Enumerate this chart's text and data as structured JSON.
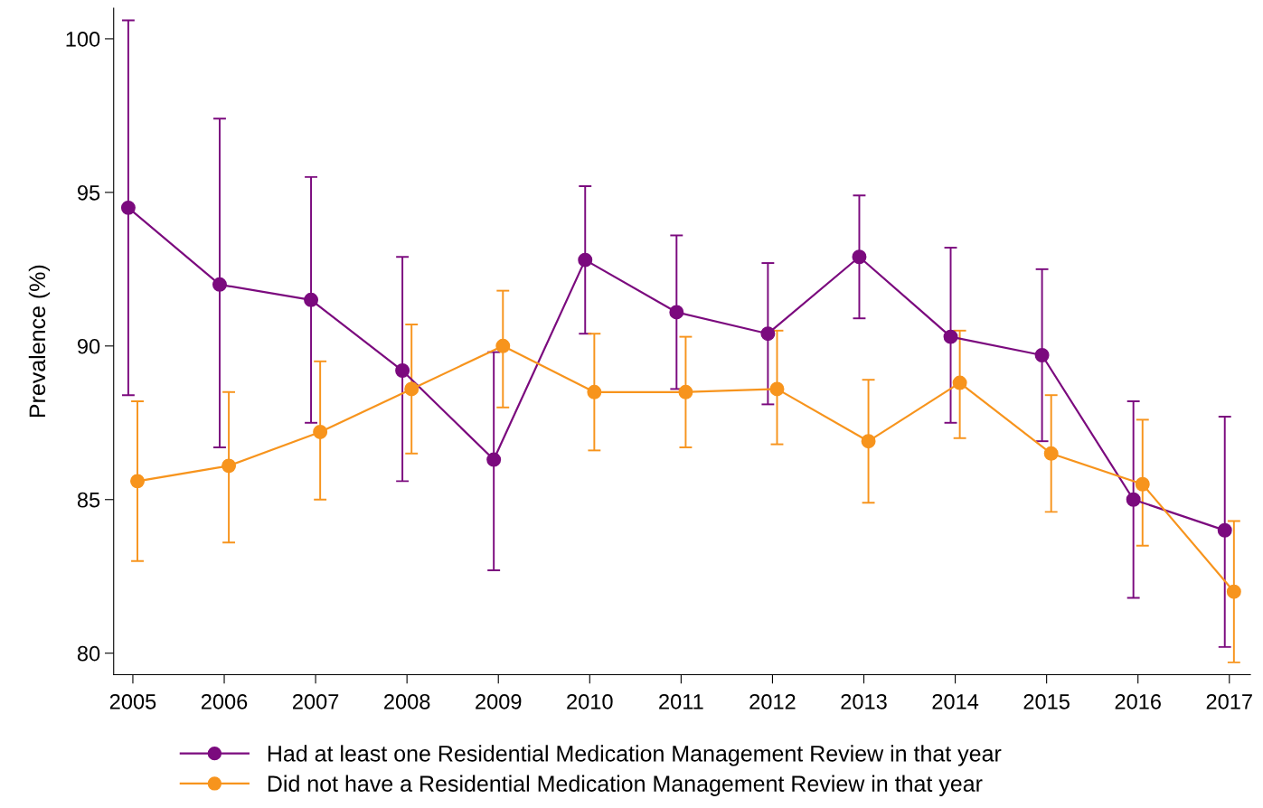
{
  "chart_data": {
    "type": "line",
    "ylabel": "Prevalence (%)",
    "xlim": [
      2004.79,
      2017.23
    ],
    "ylim": [
      79.3,
      101.0
    ],
    "xticks": [
      2005,
      2006,
      2007,
      2008,
      2009,
      2010,
      2011,
      2012,
      2013,
      2014,
      2015,
      2016,
      2017
    ],
    "yticks": [
      80,
      85,
      90,
      95,
      100
    ],
    "grid": false,
    "legend": "bottom",
    "marker": "circle",
    "line_style": "solid",
    "series": [
      {
        "name": "Had at least one Residential Medication Management Review in that year",
        "color": "#7b0a7e",
        "x": [
          2004.95,
          2005.95,
          2006.95,
          2007.95,
          2008.95,
          2009.95,
          2010.95,
          2011.95,
          2012.95,
          2013.95,
          2014.95,
          2015.95,
          2016.95
        ],
        "values": [
          94.5,
          92.0,
          91.5,
          89.2,
          86.3,
          92.8,
          91.1,
          90.4,
          92.9,
          90.3,
          89.7,
          85.0,
          84.0
        ],
        "errors": [
          [
            88.4,
            100.6
          ],
          [
            86.7,
            97.4
          ],
          [
            87.5,
            95.5
          ],
          [
            85.6,
            92.9
          ],
          [
            82.7,
            89.8
          ],
          [
            90.4,
            95.2
          ],
          [
            88.6,
            93.6
          ],
          [
            88.1,
            92.7
          ],
          [
            90.9,
            94.9
          ],
          [
            87.5,
            93.2
          ],
          [
            86.9,
            92.5
          ],
          [
            81.8,
            88.2
          ],
          [
            80.2,
            87.7
          ]
        ]
      },
      {
        "name": "Did not have a Residential Medication Management Review in that year",
        "color": "#f7941d",
        "x": [
          2005.05,
          2006.05,
          2007.05,
          2008.05,
          2009.05,
          2010.05,
          2011.05,
          2012.05,
          2013.05,
          2014.05,
          2015.05,
          2016.05,
          2017.05
        ],
        "values": [
          85.6,
          86.1,
          87.2,
          88.6,
          90.0,
          88.5,
          88.5,
          88.6,
          86.9,
          88.8,
          86.5,
          85.5,
          82.0
        ],
        "errors": [
          [
            83.0,
            88.2
          ],
          [
            83.6,
            88.5
          ],
          [
            85.0,
            89.5
          ],
          [
            86.5,
            90.7
          ],
          [
            88.0,
            91.8
          ],
          [
            86.6,
            90.4
          ],
          [
            86.7,
            90.3
          ],
          [
            86.8,
            90.5
          ],
          [
            84.9,
            88.9
          ],
          [
            87.0,
            90.5
          ],
          [
            84.6,
            88.4
          ],
          [
            83.5,
            87.6
          ],
          [
            79.7,
            84.3
          ]
        ]
      }
    ]
  }
}
